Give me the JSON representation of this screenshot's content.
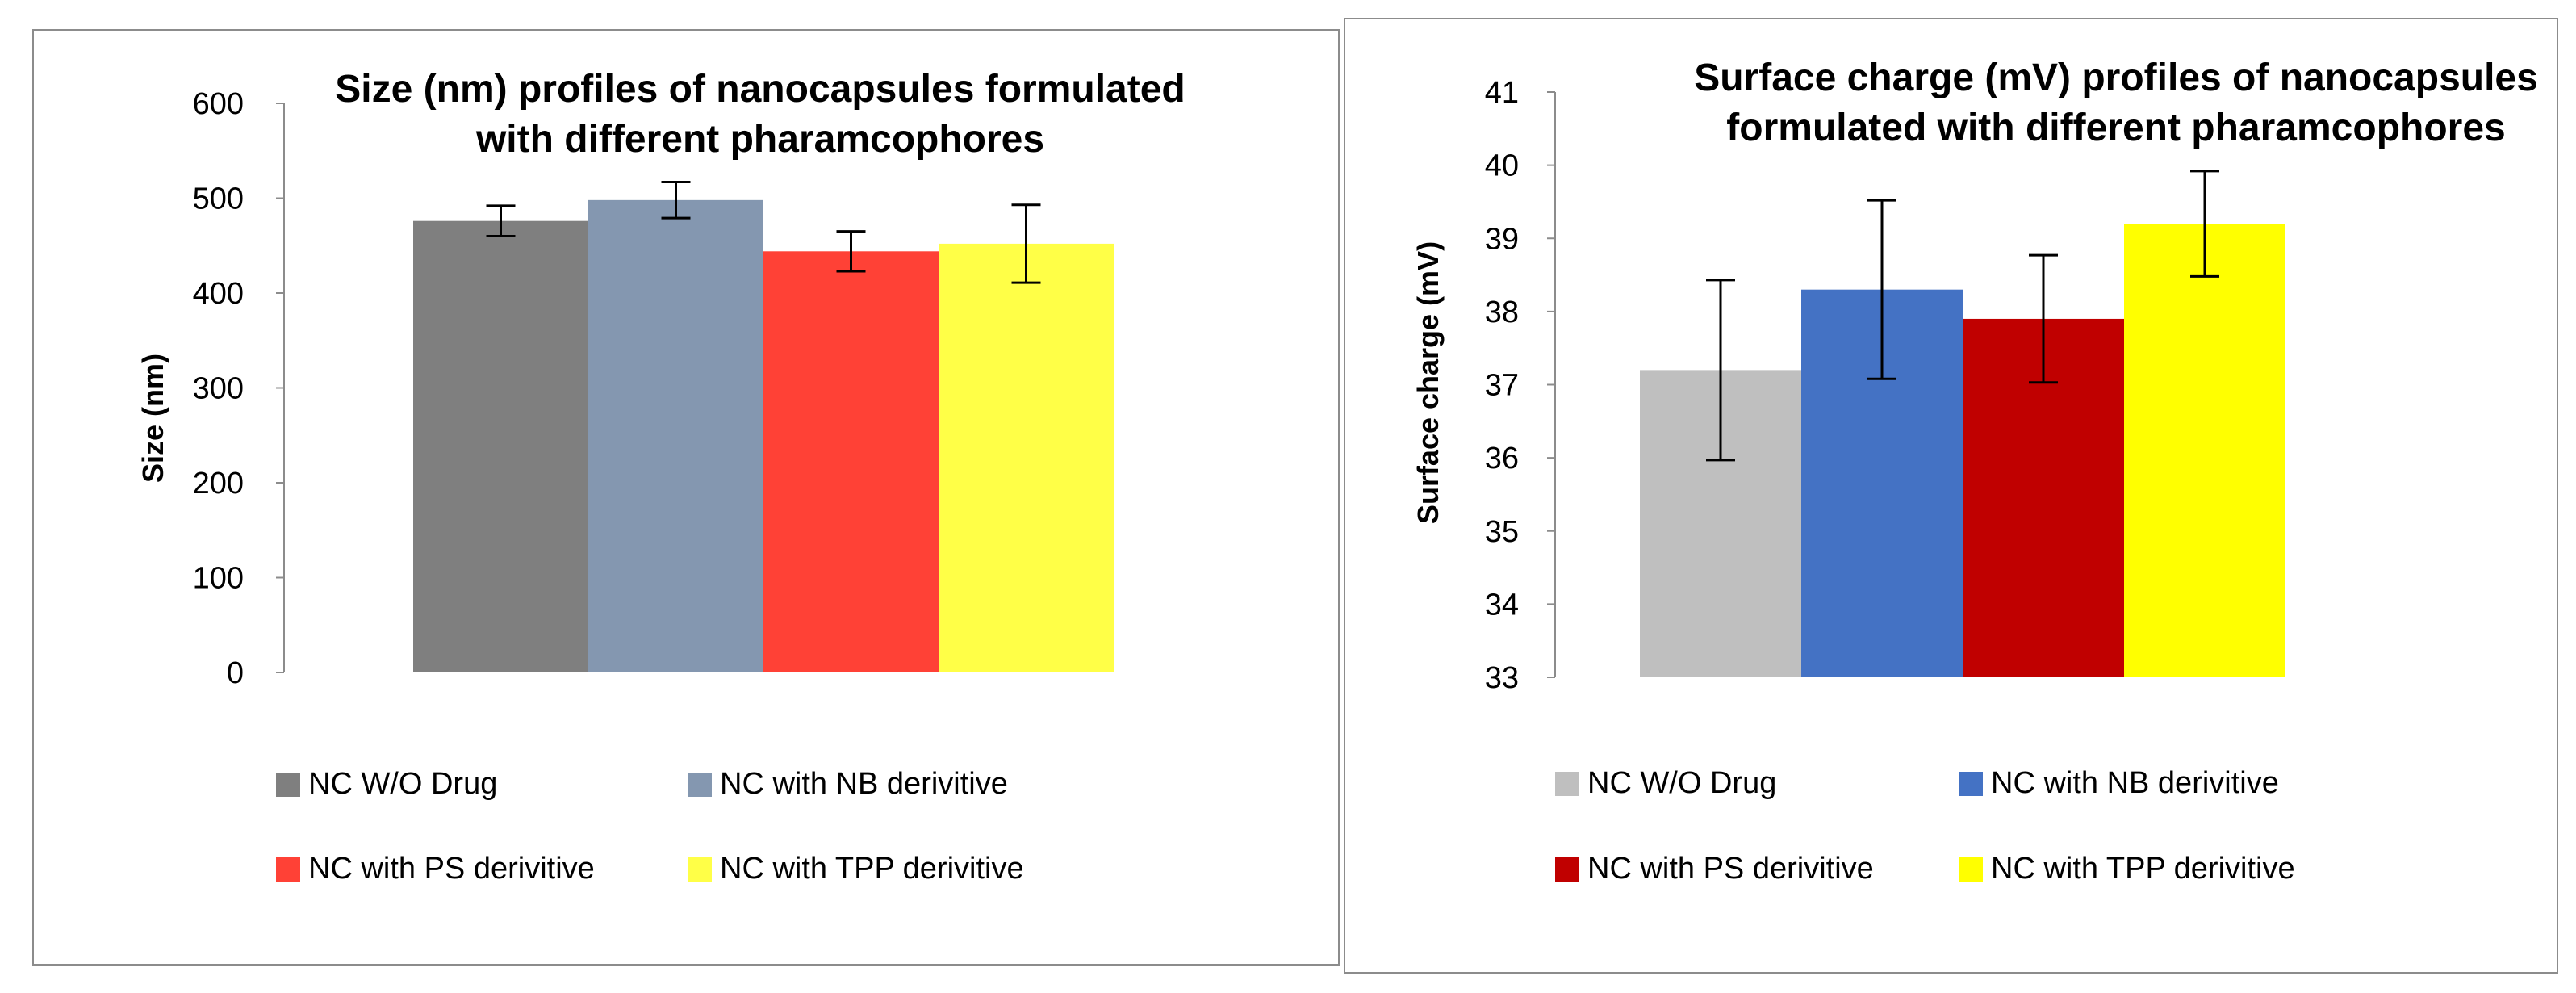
{
  "chart_data": [
    {
      "type": "bar",
      "title": "Size (nm) profiles of nanocapsules formulated with different pharamcophores",
      "title_lines": [
        "Size (nm) profiles of nanocapsules formulated",
        "with different pharamcophores"
      ],
      "xlabel": "",
      "ylabel": "Size (nm)",
      "ylim": [
        0,
        600
      ],
      "yticks": [
        "0",
        "100",
        "200",
        "300",
        "400",
        "500",
        "600"
      ],
      "legend_position": "bottom",
      "series": [
        {
          "name": "NC W/O Drug",
          "value": 476,
          "error": 16,
          "color": "#7f7f7f"
        },
        {
          "name": "NC with NB derivitive",
          "value": 498,
          "error": 19,
          "color": "#8497b0"
        },
        {
          "name": "NC with PS derivitive",
          "value": 444,
          "error": 21,
          "color": "#ff4136"
        },
        {
          "name": "NC with TPP derivitive",
          "value": 452,
          "error": 41,
          "color": "#ffff47"
        }
      ]
    },
    {
      "type": "bar",
      "title": "Surface charge (mV) profiles of nanocapsules formulated with different pharamcophores",
      "title_lines": [
        "Surface charge (mV) profiles of nanocapsules",
        "formulated with different pharamcophores"
      ],
      "xlabel": "",
      "ylabel": "Surface charge (mV)",
      "ylim": [
        33,
        41
      ],
      "yticks": [
        "33",
        "34",
        "35",
        "36",
        "37",
        "38",
        "39",
        "40",
        "41"
      ],
      "legend_position": "bottom",
      "series": [
        {
          "name": "NC W/O Drug",
          "value": 37.2,
          "error": 1.23,
          "color": "#bfbfbf"
        },
        {
          "name": "NC with NB derivitive",
          "value": 38.3,
          "error": 1.22,
          "color": "#4472c4"
        },
        {
          "name": "NC with PS derivitive",
          "value": 37.9,
          "error": 0.87,
          "color": "#c00000"
        },
        {
          "name": "NC with TPP derivitive",
          "value": 39.2,
          "error": 0.72,
          "color": "#ffff00"
        }
      ]
    }
  ]
}
